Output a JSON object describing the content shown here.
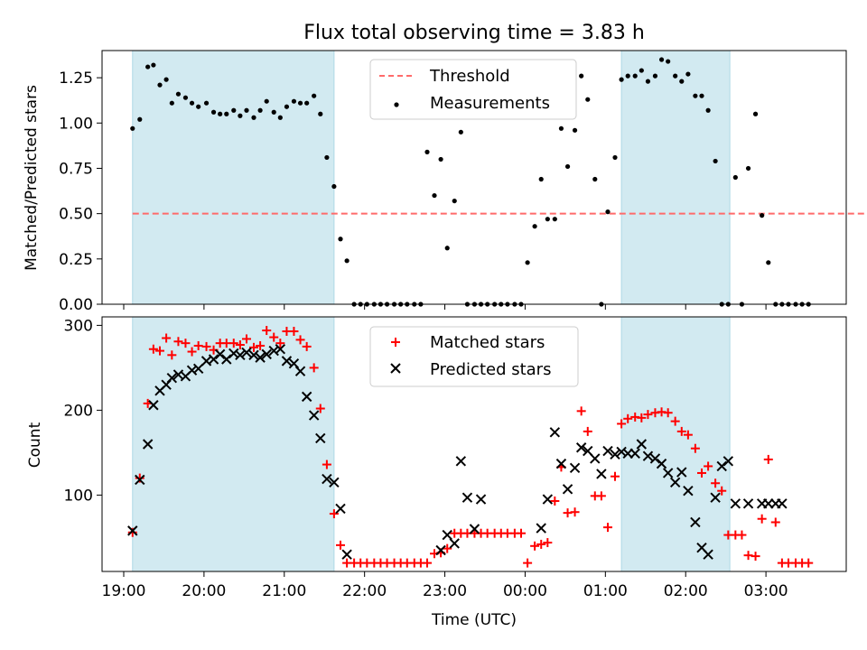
{
  "title": "Flux total observing time = 3.83 h",
  "chart_data": [
    {
      "type": "scatter",
      "ylabel": "Matched/Predicted stars",
      "xlabel": "",
      "ylim": [
        0,
        1.4
      ],
      "yticks": [
        "0.00",
        "0.25",
        "0.50",
        "0.75",
        "1.00",
        "1.25"
      ],
      "ytick_values": [
        0,
        0.25,
        0.5,
        0.75,
        1.0,
        1.25
      ],
      "legend_placement": "top-center",
      "shaded_spans": [
        [
          19.11,
          21.62
        ],
        [
          25.2,
          26.55
        ]
      ],
      "shade_color": "#add8e6",
      "series": [
        {
          "name": "Threshold",
          "kind": "dashed-line",
          "color": "#ff0000",
          "x": [
            19.11,
            35.55
          ],
          "y": [
            0.5,
            0.5
          ]
        },
        {
          "name": "Measurements",
          "kind": "points",
          "color": "#000000",
          "x": [
            19.11,
            19.2,
            19.3,
            19.37,
            19.45,
            19.53,
            19.6,
            19.68,
            19.77,
            19.85,
            19.93,
            20.03,
            20.12,
            20.2,
            20.28,
            20.37,
            20.45,
            20.53,
            20.62,
            20.7,
            20.78,
            20.87,
            20.95,
            21.03,
            21.12,
            21.2,
            21.28,
            21.37,
            21.45,
            21.53,
            21.62,
            21.7,
            21.78,
            21.87,
            21.95,
            22.03,
            22.12,
            22.2,
            22.28,
            22.37,
            22.45,
            22.53,
            22.62,
            22.7,
            22.78,
            22.87,
            22.95,
            23.03,
            23.12,
            23.2,
            23.28,
            23.37,
            23.45,
            23.53,
            23.62,
            23.7,
            23.78,
            23.87,
            23.95,
            24.03,
            24.12,
            24.2,
            24.28,
            24.37,
            24.45,
            24.53,
            24.62,
            24.7,
            24.78,
            24.87,
            24.95,
            25.03,
            25.12,
            25.2,
            25.28,
            25.37,
            25.45,
            25.53,
            25.62,
            25.7,
            25.78,
            25.87,
            25.95,
            26.03,
            26.12,
            26.2,
            26.28,
            26.37,
            26.45,
            26.53,
            26.62,
            26.7,
            26.78,
            26.87,
            26.95,
            27.03,
            27.12,
            27.2,
            27.28,
            27.37,
            27.45,
            27.53
          ],
          "y": [
            0.97,
            1.02,
            1.31,
            1.32,
            1.21,
            1.24,
            1.11,
            1.16,
            1.14,
            1.11,
            1.09,
            1.11,
            1.06,
            1.05,
            1.05,
            1.07,
            1.04,
            1.07,
            1.03,
            1.07,
            1.12,
            1.06,
            1.03,
            1.09,
            1.12,
            1.11,
            1.11,
            1.15,
            1.05,
            0.81,
            0.65,
            0.36,
            0.24,
            0,
            0,
            0,
            0,
            0,
            0,
            0,
            0,
            0,
            0,
            0,
            0.84,
            0.6,
            0.8,
            0.31,
            0.57,
            0.95,
            0,
            0,
            0,
            0,
            0,
            0,
            0,
            0,
            0,
            0.23,
            0.43,
            0.69,
            0.47,
            0.47,
            0.97,
            0.76,
            0.96,
            1.26,
            1.13,
            0.69,
            0,
            0.51,
            0.81,
            1.24,
            1.26,
            1.26,
            1.29,
            1.23,
            1.26,
            1.35,
            1.34,
            1.26,
            1.23,
            1.27,
            1.15,
            1.15,
            1.07,
            0.79,
            0,
            0,
            0.7,
            0,
            0.75,
            1.05,
            0.49,
            0.23,
            0,
            0,
            0,
            0,
            0,
            0
          ]
        }
      ]
    },
    {
      "type": "scatter",
      "ylabel": "Count",
      "xlabel": "Time (UTC)",
      "ylim": [
        10,
        310
      ],
      "yticks": [
        "100",
        "200",
        "300"
      ],
      "ytick_values": [
        100,
        200,
        300
      ],
      "xticks": [
        "19:00",
        "20:00",
        "21:00",
        "22:00",
        "23:00",
        "00:00",
        "01:00",
        "02:00",
        "03:00"
      ],
      "xtick_values": [
        19,
        20,
        21,
        22,
        23,
        24,
        25,
        26,
        27
      ],
      "xlim": [
        18.73,
        28.0
      ],
      "legend_placement": "top-center",
      "shaded_spans": [
        [
          19.11,
          21.62
        ],
        [
          25.2,
          26.55
        ]
      ],
      "shade_color": "#add8e6",
      "series": [
        {
          "name": "Matched stars",
          "marker": "+",
          "color": "#ff0000",
          "x": [
            19.11,
            19.2,
            19.3,
            19.37,
            19.45,
            19.53,
            19.6,
            19.68,
            19.77,
            19.85,
            19.93,
            20.03,
            20.12,
            20.2,
            20.28,
            20.37,
            20.45,
            20.53,
            20.62,
            20.7,
            20.78,
            20.87,
            20.95,
            21.03,
            21.12,
            21.2,
            21.28,
            21.37,
            21.45,
            21.53,
            21.62,
            21.7,
            21.78,
            21.87,
            21.95,
            22.03,
            22.12,
            22.2,
            22.28,
            22.37,
            22.45,
            22.53,
            22.62,
            22.7,
            22.78,
            22.87,
            22.95,
            23.03,
            23.12,
            23.2,
            23.28,
            23.37,
            23.45,
            23.53,
            23.62,
            23.7,
            23.78,
            23.87,
            23.95,
            24.03,
            24.12,
            24.2,
            24.28,
            24.37,
            24.45,
            24.53,
            24.62,
            24.7,
            24.78,
            24.87,
            24.95,
            25.03,
            25.12,
            25.2,
            25.28,
            25.37,
            25.45,
            25.53,
            25.62,
            25.7,
            25.78,
            25.87,
            25.95,
            26.03,
            26.12,
            26.2,
            26.28,
            26.37,
            26.45,
            26.53,
            26.62,
            26.7,
            26.78,
            26.87,
            26.95,
            27.03,
            27.12,
            27.2,
            27.28,
            27.37,
            27.45,
            27.53
          ],
          "y": [
            56,
            120,
            208,
            272,
            270,
            285,
            265,
            281,
            279,
            269,
            276,
            275,
            271,
            279,
            279,
            279,
            277,
            284,
            274,
            276,
            294,
            286,
            279,
            293,
            293,
            283,
            275,
            250,
            202,
            136,
            78,
            41,
            20,
            20,
            20,
            20,
            20,
            20,
            20,
            20,
            20,
            20,
            20,
            20,
            20,
            31,
            32,
            37,
            55,
            55,
            55,
            55,
            55,
            55,
            55,
            55,
            55,
            55,
            55,
            20,
            40,
            42,
            44,
            93,
            133,
            79,
            80,
            199,
            175,
            99,
            99,
            62,
            122,
            184,
            190,
            192,
            191,
            195,
            197,
            198,
            197,
            187,
            175,
            171,
            155,
            126,
            134,
            114,
            105,
            53,
            53,
            53,
            29,
            28,
            72,
            142,
            68,
            20,
            20,
            20,
            20,
            20
          ]
        },
        {
          "name": "Predicted stars",
          "marker": "x",
          "color": "#000000",
          "x": [
            19.11,
            19.2,
            19.3,
            19.37,
            19.45,
            19.53,
            19.6,
            19.68,
            19.77,
            19.85,
            19.93,
            20.03,
            20.12,
            20.2,
            20.28,
            20.37,
            20.45,
            20.53,
            20.62,
            20.7,
            20.78,
            20.87,
            20.95,
            21.03,
            21.12,
            21.2,
            21.28,
            21.37,
            21.45,
            21.53,
            21.62,
            21.7,
            21.78,
            22.95,
            23.03,
            23.12,
            23.2,
            23.28,
            23.37,
            23.45,
            24.2,
            24.28,
            24.37,
            24.45,
            24.53,
            24.62,
            24.7,
            24.78,
            24.87,
            24.95,
            25.03,
            25.12,
            25.2,
            25.28,
            25.37,
            25.45,
            25.53,
            25.62,
            25.7,
            25.78,
            25.87,
            25.95,
            26.03,
            26.12,
            26.2,
            26.28,
            26.37,
            26.45,
            26.53,
            26.62,
            26.78,
            26.95,
            27.03,
            27.12,
            27.2
          ],
          "y": [
            58,
            118,
            160,
            206,
            223,
            230,
            238,
            242,
            240,
            247,
            249,
            258,
            260,
            266,
            260,
            267,
            265,
            268,
            265,
            262,
            266,
            270,
            272,
            258,
            255,
            246,
            216,
            194,
            167,
            119,
            115,
            84,
            30,
            35,
            53,
            43,
            140,
            97,
            60,
            95,
            61,
            95,
            174,
            137,
            107,
            132,
            156,
            152,
            143,
            125,
            152,
            148,
            151,
            149,
            149,
            160,
            146,
            143,
            137,
            126,
            115,
            127,
            105,
            68,
            38,
            30,
            97,
            134,
            140,
            90,
            90,
            90,
            90,
            90,
            90
          ]
        }
      ]
    }
  ]
}
